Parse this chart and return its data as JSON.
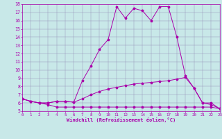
{
  "xlabel": "Windchill (Refroidissement éolien,°C)",
  "xlim": [
    0,
    23
  ],
  "ylim": [
    5,
    18
  ],
  "yticks": [
    5,
    6,
    7,
    8,
    9,
    10,
    11,
    12,
    13,
    14,
    15,
    16,
    17,
    18
  ],
  "xticks": [
    0,
    1,
    2,
    3,
    4,
    5,
    6,
    7,
    8,
    9,
    10,
    11,
    12,
    13,
    14,
    15,
    16,
    17,
    18,
    19,
    20,
    21,
    22,
    23
  ],
  "bg_color": "#c8e8e8",
  "line_color": "#aa00aa",
  "line1_x": [
    0,
    1,
    2,
    3,
    4,
    5,
    6,
    7,
    8,
    9,
    10,
    11,
    12,
    13,
    14,
    15,
    16,
    17,
    18,
    19,
    20,
    21,
    22,
    23
  ],
  "line1_y": [
    6.5,
    6.2,
    6.0,
    6.0,
    6.2,
    6.2,
    6.1,
    8.7,
    10.5,
    12.5,
    13.7,
    17.7,
    16.3,
    17.5,
    17.2,
    16.0,
    17.7,
    17.7,
    14.0,
    9.3,
    7.8,
    6.0,
    6.0,
    5.3
  ],
  "line2_x": [
    0,
    1,
    2,
    3,
    4,
    5,
    6,
    7,
    8,
    9,
    10,
    11,
    12,
    13,
    14,
    15,
    16,
    17,
    18,
    19,
    20,
    21,
    22,
    23
  ],
  "line2_y": [
    6.5,
    6.2,
    6.0,
    5.8,
    5.5,
    5.5,
    5.5,
    5.5,
    5.5,
    5.5,
    5.5,
    5.5,
    5.5,
    5.5,
    5.5,
    5.5,
    5.5,
    5.5,
    5.5,
    5.5,
    5.5,
    5.5,
    5.5,
    5.3
  ],
  "line3_x": [
    0,
    1,
    2,
    3,
    4,
    5,
    6,
    7,
    8,
    9,
    10,
    11,
    12,
    13,
    14,
    15,
    16,
    17,
    18,
    19,
    20,
    21,
    22,
    23
  ],
  "line3_y": [
    6.5,
    6.2,
    6.0,
    6.0,
    6.2,
    6.2,
    6.1,
    6.5,
    7.0,
    7.4,
    7.7,
    7.9,
    8.1,
    8.3,
    8.4,
    8.5,
    8.6,
    8.7,
    8.9,
    9.1,
    7.8,
    6.0,
    5.8,
    5.3
  ]
}
